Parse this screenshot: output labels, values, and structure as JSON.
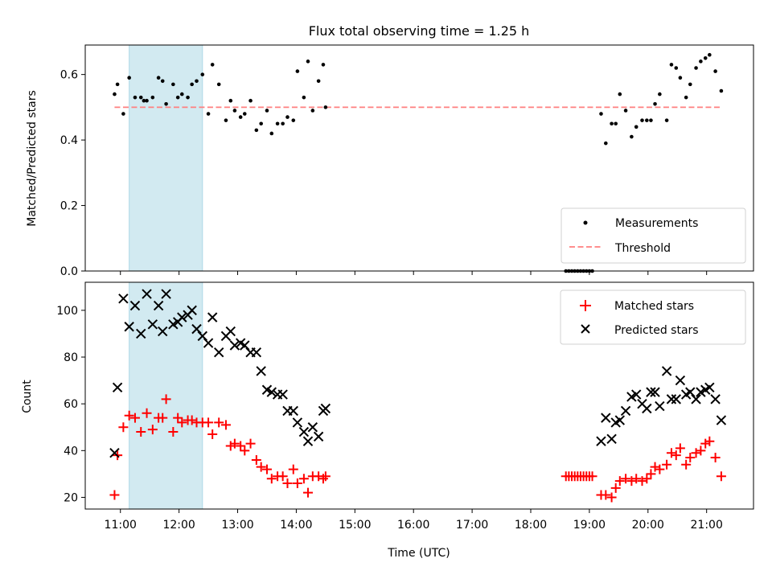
{
  "chart_data": {
    "title": "Flux total observing time = 1.25 h",
    "xlabel": "Time (UTC)",
    "x_unit": "hours UTC",
    "xlim": [
      10.4,
      21.8
    ],
    "xticks": [
      11,
      12,
      13,
      14,
      15,
      16,
      17,
      18,
      19,
      20,
      21
    ],
    "xticklabels": [
      "11:00",
      "12:00",
      "13:00",
      "14:00",
      "15:00",
      "16:00",
      "17:00",
      "18:00",
      "19:00",
      "20:00",
      "21:00"
    ],
    "highlight_span": [
      11.15,
      12.4
    ],
    "highlight_color": "#add8e6",
    "panels": [
      {
        "type": "scatter",
        "ylabel": "Matched/Predicted stars",
        "ylim": [
          0,
          0.69
        ],
        "yticks": [
          0.0,
          0.2,
          0.4,
          0.6
        ],
        "yticklabels": [
          "0.0",
          "0.2",
          "0.4",
          "0.6"
        ],
        "legend_loc": "lower right",
        "threshold": {
          "name": "Threshold",
          "y": 0.5,
          "x": [
            10.9,
            21.25
          ],
          "color": "#ff7f7f"
        },
        "series": [
          {
            "name": "Measurements",
            "color": "#000000",
            "marker": "dot",
            "x": [
              10.9,
              10.95,
              11.05,
              11.15,
              11.25,
              11.35,
              11.4,
              11.45,
              11.55,
              11.65,
              11.72,
              11.78,
              11.9,
              11.98,
              12.05,
              12.15,
              12.22,
              12.3,
              12.4,
              12.5,
              12.57,
              12.68,
              12.8,
              12.88,
              12.95,
              13.05,
              13.12,
              13.22,
              13.32,
              13.4,
              13.5,
              13.58,
              13.68,
              13.77,
              13.85,
              13.95,
              14.02,
              14.13,
              14.2,
              14.28,
              14.38,
              14.46,
              14.5,
              18.6,
              18.65,
              18.7,
              18.75,
              18.8,
              18.85,
              18.9,
              18.95,
              19.0,
              19.05,
              19.2,
              19.28,
              19.38,
              19.45,
              19.52,
              19.62,
              19.72,
              19.8,
              19.9,
              19.98,
              20.05,
              20.12,
              20.2,
              20.32,
              20.4,
              20.48,
              20.55,
              20.65,
              20.72,
              20.82,
              20.9,
              20.98,
              21.05,
              21.15,
              21.25
            ],
            "y": [
              0.54,
              0.57,
              0.48,
              0.59,
              0.53,
              0.53,
              0.52,
              0.52,
              0.53,
              0.59,
              0.58,
              0.51,
              0.57,
              0.53,
              0.54,
              0.53,
              0.57,
              0.58,
              0.6,
              0.48,
              0.63,
              0.57,
              0.46,
              0.52,
              0.49,
              0.47,
              0.48,
              0.52,
              0.43,
              0.45,
              0.49,
              0.42,
              0.45,
              0.45,
              0.47,
              0.46,
              0.61,
              0.53,
              0.64,
              0.49,
              0.58,
              0.63,
              0.5,
              0.0,
              0.0,
              0.0,
              0.0,
              0.0,
              0.0,
              0.0,
              0.0,
              0.0,
              0.0,
              0.48,
              0.39,
              0.45,
              0.45,
              0.54,
              0.49,
              0.41,
              0.44,
              0.46,
              0.46,
              0.46,
              0.51,
              0.54,
              0.46,
              0.63,
              0.62,
              0.59,
              0.53,
              0.57,
              0.62,
              0.64,
              0.65,
              0.66,
              0.61,
              0.55
            ]
          }
        ]
      },
      {
        "type": "scatter",
        "ylabel": "Count",
        "ylim": [
          15,
          112
        ],
        "yticks": [
          20,
          40,
          60,
          80,
          100
        ],
        "yticklabels": [
          "20",
          "40",
          "60",
          "80",
          "100"
        ],
        "legend_loc": "upper right",
        "series": [
          {
            "name": "Matched stars",
            "color": "#ff0000",
            "marker": "plus",
            "x": [
              10.9,
              10.95,
              11.05,
              11.15,
              11.25,
              11.35,
              11.45,
              11.55,
              11.65,
              11.72,
              11.78,
              11.9,
              11.98,
              12.05,
              12.15,
              12.22,
              12.3,
              12.4,
              12.5,
              12.57,
              12.68,
              12.8,
              12.88,
              12.95,
              13.05,
              13.12,
              13.22,
              13.32,
              13.4,
              13.5,
              13.58,
              13.68,
              13.77,
              13.85,
              13.95,
              14.02,
              14.13,
              14.2,
              14.28,
              14.38,
              14.46,
              14.5,
              18.6,
              18.65,
              18.7,
              18.75,
              18.8,
              18.85,
              18.9,
              18.95,
              19.0,
              19.05,
              19.2,
              19.28,
              19.38,
              19.45,
              19.52,
              19.62,
              19.72,
              19.8,
              19.9,
              19.98,
              20.05,
              20.12,
              20.2,
              20.32,
              20.4,
              20.48,
              20.55,
              20.65,
              20.72,
              20.82,
              20.9,
              20.98,
              21.05,
              21.15,
              21.25
            ],
            "y": [
              21,
              38,
              50,
              55,
              54,
              48,
              56,
              49,
              54,
              54,
              62,
              48,
              54,
              52,
              53,
              53,
              52,
              52,
              52,
              47,
              52,
              51,
              42,
              43,
              42,
              40,
              43,
              36,
              33,
              32,
              28,
              29,
              29,
              26,
              32,
              26,
              28,
              22,
              29,
              29,
              28,
              29,
              29,
              29,
              29,
              29,
              29,
              29,
              29,
              29,
              29,
              29,
              21,
              21,
              20,
              24,
              27,
              28,
              27,
              28,
              27,
              28,
              30,
              33,
              32,
              34,
              39,
              38,
              41,
              34,
              37,
              39,
              40,
              43,
              44,
              37,
              29
            ]
          },
          {
            "name": "Predicted stars",
            "color": "#000000",
            "marker": "x",
            "x": [
              10.9,
              10.95,
              11.05,
              11.15,
              11.25,
              11.35,
              11.45,
              11.55,
              11.65,
              11.72,
              11.78,
              11.9,
              11.98,
              12.05,
              12.15,
              12.22,
              12.3,
              12.4,
              12.5,
              12.57,
              12.68,
              12.8,
              12.88,
              12.95,
              13.05,
              13.12,
              13.22,
              13.32,
              13.4,
              13.5,
              13.58,
              13.68,
              13.77,
              13.85,
              13.95,
              14.02,
              14.13,
              14.2,
              14.28,
              14.38,
              14.46,
              14.5,
              19.2,
              19.28,
              19.38,
              19.45,
              19.52,
              19.62,
              19.72,
              19.8,
              19.9,
              19.98,
              20.05,
              20.12,
              20.2,
              20.32,
              20.4,
              20.48,
              20.55,
              20.65,
              20.72,
              20.82,
              20.9,
              20.98,
              21.05,
              21.15,
              21.25
            ],
            "y": [
              39,
              67,
              105,
              93,
              102,
              90,
              107,
              94,
              102,
              91,
              107,
              94,
              95,
              97,
              98,
              100,
              92,
              89,
              86,
              97,
              82,
              89,
              91,
              85,
              86,
              85,
              82,
              82,
              74,
              66,
              65,
              64,
              64,
              57,
              57,
              52,
              48,
              44,
              50,
              46,
              57,
              58,
              44,
              54,
              45,
              52,
              53,
              57,
              63,
              64,
              60,
              58,
              65,
              65,
              59,
              74,
              62,
              62,
              70,
              64,
              65,
              62,
              65,
              66,
              67,
              62,
              53
            ]
          }
        ]
      }
    ]
  }
}
